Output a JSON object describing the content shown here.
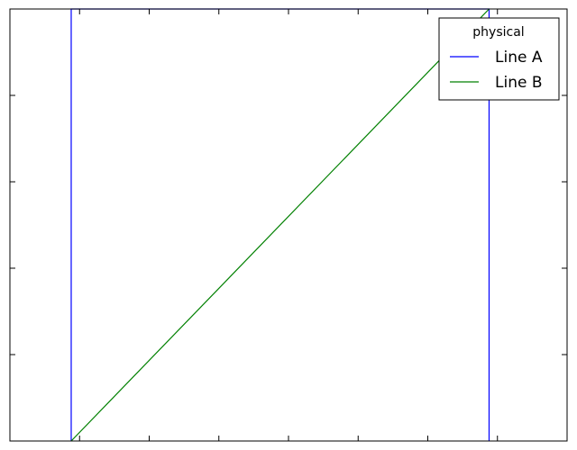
{
  "chart_data": {
    "type": "line",
    "title": "",
    "xlabel": "",
    "ylabel": "",
    "xlim": [
      0,
      8
    ],
    "ylim": [
      0,
      5
    ],
    "x_ticks": [
      0,
      1,
      2,
      3,
      4,
      5,
      6,
      7,
      8
    ],
    "y_ticks": [
      0,
      1,
      2,
      3,
      4,
      5
    ],
    "tick_labels_visible": false,
    "grid": false,
    "legend": {
      "title": "physical",
      "placement": "top-right"
    },
    "series": [
      {
        "name": "Line A",
        "color": "#0000ff",
        "points": [
          [
            0.88,
            0
          ],
          [
            0.88,
            5
          ],
          [
            6.88,
            5
          ],
          [
            6.88,
            0
          ]
        ]
      },
      {
        "name": "Line B",
        "color": "#008000",
        "points": [
          [
            0.88,
            0
          ],
          [
            6.88,
            5
          ]
        ]
      }
    ]
  }
}
